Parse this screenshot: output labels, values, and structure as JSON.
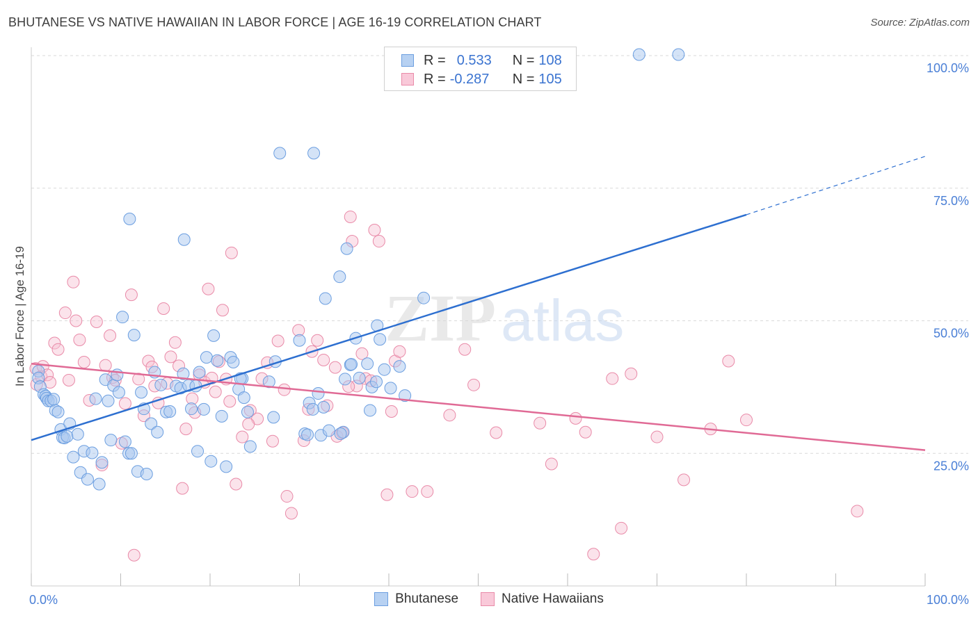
{
  "title": "BHUTANESE VS NATIVE HAWAIIAN IN LABOR FORCE | AGE 16-19 CORRELATION CHART",
  "source": "Source: ZipAtlas.com",
  "watermark": {
    "zip": "ZIP",
    "atlas": "atlas"
  },
  "legend": {
    "rows": [
      {
        "r_label": "R =",
        "r_value": "0.533",
        "n_label": "N =",
        "n_value": "108"
      },
      {
        "r_label": "R =",
        "r_value": "-0.287",
        "n_label": "N =",
        "n_value": "105"
      }
    ]
  },
  "colors": {
    "blue_fill": "#a9c8f0",
    "blue_stroke": "#6b9ee0",
    "blue_line": "#2d6fd0",
    "pink_fill": "#f7c0d2",
    "pink_stroke": "#e98aa8",
    "pink_line": "#e06a95",
    "tick_label": "#4a7fd6",
    "grid": "#d9d9d9"
  },
  "chart_data": {
    "type": "scatter",
    "title": "BHUTANESE VS NATIVE HAWAIIAN IN LABOR FORCE | AGE 16-19 CORRELATION CHART",
    "xlabel": "",
    "ylabel": "In Labor Force | Age 16-19",
    "xlim": [
      0,
      100
    ],
    "ylim": [
      0,
      100
    ],
    "x_tick_labels": [
      "0.0%",
      "100.0%"
    ],
    "y_tick_labels": [
      "100.0%",
      "75.0%",
      "50.0%",
      "25.0%"
    ],
    "y_tick_values": [
      100,
      75,
      50,
      25
    ],
    "series": [
      {
        "name": "Bhutanese",
        "r": 0.533,
        "n": 108,
        "trend": {
          "x0": 0,
          "y0": 27.5,
          "x1": 80,
          "y1": 70.0,
          "dash_x1": 100,
          "dash_y1": 81.0
        },
        "points": [
          [
            0.8,
            40.5
          ],
          [
            0.8,
            39.2
          ],
          [
            1.0,
            37.6
          ],
          [
            1.4,
            36.1
          ],
          [
            1.6,
            35.8
          ],
          [
            1.7,
            35.4
          ],
          [
            1.9,
            34.9
          ],
          [
            2.2,
            34.9
          ],
          [
            2.5,
            35.2
          ],
          [
            2.7,
            33.1
          ],
          [
            3.0,
            32.8
          ],
          [
            3.3,
            29.5
          ],
          [
            3.5,
            28.0
          ],
          [
            3.7,
            27.9
          ],
          [
            4.0,
            28.2
          ],
          [
            4.3,
            30.6
          ],
          [
            4.7,
            24.3
          ],
          [
            5.2,
            28.6
          ],
          [
            5.5,
            21.4
          ],
          [
            5.9,
            25.4
          ],
          [
            6.3,
            20.1
          ],
          [
            6.8,
            25.1
          ],
          [
            7.2,
            35.3
          ],
          [
            7.6,
            19.2
          ],
          [
            7.9,
            23.3
          ],
          [
            8.3,
            38.9
          ],
          [
            8.6,
            34.9
          ],
          [
            8.9,
            27.5
          ],
          [
            9.2,
            37.8
          ],
          [
            9.6,
            39.8
          ],
          [
            9.8,
            36.5
          ],
          [
            10.2,
            50.7
          ],
          [
            10.5,
            27.2
          ],
          [
            10.9,
            25.0
          ],
          [
            11.2,
            25.0
          ],
          [
            11.5,
            47.3
          ],
          [
            11.9,
            21.6
          ],
          [
            12.3,
            36.5
          ],
          [
            12.6,
            33.4
          ],
          [
            12.9,
            21.1
          ],
          [
            13.4,
            30.6
          ],
          [
            13.8,
            40.3
          ],
          [
            14.1,
            29.0
          ],
          [
            14.5,
            37.9
          ],
          [
            15.1,
            32.8
          ],
          [
            15.5,
            32.9
          ],
          [
            16.2,
            37.7
          ],
          [
            16.7,
            37.3
          ],
          [
            17.0,
            40.0
          ],
          [
            17.6,
            37.8
          ],
          [
            17.9,
            33.4
          ],
          [
            18.6,
            25.4
          ],
          [
            18.8,
            40.3
          ],
          [
            19.3,
            33.3
          ],
          [
            19.6,
            43.1
          ],
          [
            20.1,
            23.5
          ],
          [
            20.4,
            47.2
          ],
          [
            20.8,
            42.5
          ],
          [
            21.3,
            32.0
          ],
          [
            21.8,
            22.5
          ],
          [
            22.3,
            43.1
          ],
          [
            22.6,
            42.2
          ],
          [
            23.2,
            37.1
          ],
          [
            23.6,
            39.1
          ],
          [
            23.8,
            35.5
          ],
          [
            24.2,
            32.8
          ],
          [
            24.5,
            26.3
          ],
          [
            26.6,
            38.5
          ],
          [
            27.1,
            31.8
          ],
          [
            27.3,
            42.3
          ],
          [
            27.8,
            81.6
          ],
          [
            30.0,
            46.3
          ],
          [
            30.6,
            28.7
          ],
          [
            30.9,
            28.5
          ],
          [
            31.1,
            34.5
          ],
          [
            32.1,
            36.3
          ],
          [
            32.4,
            28.4
          ],
          [
            32.7,
            33.7
          ],
          [
            32.9,
            54.2
          ],
          [
            33.3,
            29.3
          ],
          [
            34.5,
            58.3
          ],
          [
            35.1,
            39.0
          ],
          [
            34.9,
            29.0
          ],
          [
            35.3,
            63.6
          ],
          [
            35.7,
            41.7
          ],
          [
            36.3,
            46.7
          ],
          [
            36.7,
            39.2
          ],
          [
            37.6,
            41.9
          ],
          [
            37.9,
            33.1
          ],
          [
            38.1,
            37.5
          ],
          [
            38.7,
            49.1
          ],
          [
            38.6,
            38.5
          ],
          [
            39.0,
            46.5
          ],
          [
            39.5,
            40.8
          ],
          [
            40.2,
            37.3
          ],
          [
            41.2,
            41.4
          ],
          [
            41.8,
            35.9
          ],
          [
            43.9,
            54.3
          ],
          [
            68.0,
            100.2
          ],
          [
            72.4,
            100.2
          ],
          [
            31.6,
            81.6
          ],
          [
            11.0,
            69.2
          ],
          [
            17.1,
            65.3
          ],
          [
            35.8,
            41.8
          ],
          [
            34.6,
            28.7
          ],
          [
            31.5,
            33.3
          ],
          [
            23.4,
            39.1
          ],
          [
            18.4,
            37.7
          ]
        ]
      },
      {
        "name": "Native Hawaiians",
        "r": -0.287,
        "n": 105,
        "trend": {
          "x0": 0,
          "y0": 41.9,
          "x1": 100,
          "y1": 25.6
        },
        "points": [
          [
            0.5,
            41.0
          ],
          [
            0.6,
            38.0
          ],
          [
            1.1,
            39.5
          ],
          [
            1.3,
            41.4
          ],
          [
            1.8,
            39.8
          ],
          [
            2.1,
            38.4
          ],
          [
            2.6,
            45.8
          ],
          [
            3.0,
            44.6
          ],
          [
            3.8,
            51.5
          ],
          [
            4.2,
            38.8
          ],
          [
            4.7,
            57.3
          ],
          [
            5.0,
            50.0
          ],
          [
            5.4,
            46.4
          ],
          [
            5.9,
            42.2
          ],
          [
            6.5,
            35.0
          ],
          [
            7.3,
            49.8
          ],
          [
            7.9,
            22.8
          ],
          [
            8.3,
            41.6
          ],
          [
            8.8,
            47.2
          ],
          [
            9.1,
            39.3
          ],
          [
            9.4,
            38.8
          ],
          [
            10.1,
            26.9
          ],
          [
            10.5,
            34.4
          ],
          [
            11.2,
            54.9
          ],
          [
            11.5,
            5.8
          ],
          [
            12.0,
            39.0
          ],
          [
            12.6,
            32.1
          ],
          [
            13.1,
            42.4
          ],
          [
            13.5,
            41.3
          ],
          [
            13.8,
            37.7
          ],
          [
            14.2,
            34.5
          ],
          [
            14.8,
            52.3
          ],
          [
            15.2,
            38.2
          ],
          [
            15.6,
            43.2
          ],
          [
            16.1,
            45.9
          ],
          [
            16.5,
            41.5
          ],
          [
            16.9,
            18.4
          ],
          [
            17.3,
            29.6
          ],
          [
            18.0,
            35.3
          ],
          [
            18.3,
            32.7
          ],
          [
            18.8,
            39.8
          ],
          [
            19.4,
            38.4
          ],
          [
            19.8,
            56.0
          ],
          [
            20.2,
            39.2
          ],
          [
            20.6,
            36.6
          ],
          [
            21.0,
            42.3
          ],
          [
            21.4,
            52.0
          ],
          [
            21.8,
            39.0
          ],
          [
            22.4,
            62.8
          ],
          [
            22.9,
            19.2
          ],
          [
            23.6,
            28.1
          ],
          [
            24.5,
            33.1
          ],
          [
            25.3,
            31.5
          ],
          [
            25.8,
            39.1
          ],
          [
            26.4,
            42.1
          ],
          [
            27.0,
            27.3
          ],
          [
            27.6,
            46.2
          ],
          [
            28.3,
            37.0
          ],
          [
            28.6,
            16.9
          ],
          [
            29.1,
            13.7
          ],
          [
            29.9,
            48.2
          ],
          [
            30.5,
            27.4
          ],
          [
            31.0,
            33.3
          ],
          [
            31.4,
            44.2
          ],
          [
            32.0,
            46.3
          ],
          [
            32.7,
            42.6
          ],
          [
            33.1,
            34.0
          ],
          [
            34.2,
            28.2
          ],
          [
            34.8,
            28.9
          ],
          [
            35.7,
            69.6
          ],
          [
            35.9,
            65.0
          ],
          [
            36.4,
            37.7
          ],
          [
            37.0,
            43.8
          ],
          [
            37.4,
            39.1
          ],
          [
            38.4,
            67.1
          ],
          [
            38.9,
            65.0
          ],
          [
            39.8,
            17.2
          ],
          [
            40.3,
            32.9
          ],
          [
            40.7,
            42.4
          ],
          [
            41.2,
            44.2
          ],
          [
            42.6,
            17.8
          ],
          [
            44.3,
            17.8
          ],
          [
            46.8,
            32.2
          ],
          [
            48.5,
            44.6
          ],
          [
            49.5,
            37.9
          ],
          [
            52.0,
            28.9
          ],
          [
            56.9,
            30.7
          ],
          [
            58.2,
            23.0
          ],
          [
            60.9,
            31.6
          ],
          [
            62.0,
            29.0
          ],
          [
            62.9,
            6.0
          ],
          [
            65.0,
            39.1
          ],
          [
            66.0,
            10.9
          ],
          [
            67.1,
            40.0
          ],
          [
            70.0,
            28.1
          ],
          [
            73.0,
            20.0
          ],
          [
            76.0,
            29.6
          ],
          [
            78.0,
            42.4
          ],
          [
            80.0,
            31.3
          ],
          [
            92.4,
            14.1
          ],
          [
            22.2,
            34.8
          ],
          [
            24.3,
            30.5
          ],
          [
            34.0,
            41.2
          ],
          [
            38.0,
            38.7
          ],
          [
            35.5,
            37.6
          ]
        ]
      }
    ]
  }
}
